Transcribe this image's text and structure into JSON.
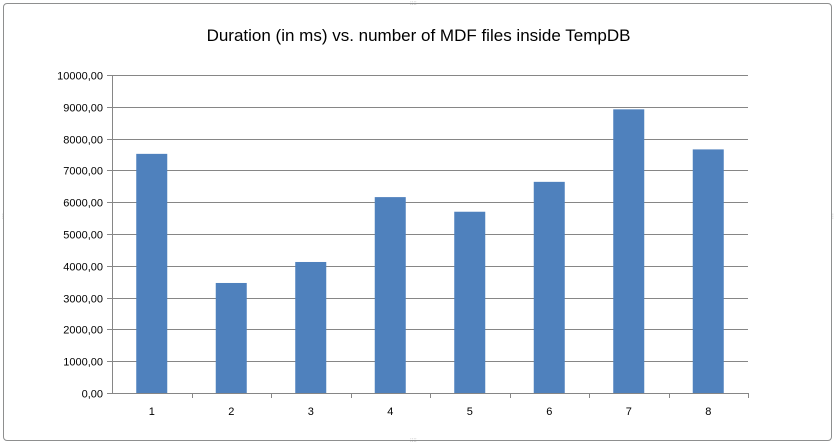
{
  "chart_data": {
    "type": "bar",
    "title": "Duration (in ms) vs. number of MDF files inside TempDB",
    "xlabel": "",
    "ylabel": "",
    "categories": [
      "1",
      "2",
      "3",
      "4",
      "5",
      "6",
      "7",
      "8"
    ],
    "values": [
      7520,
      3460,
      4120,
      6160,
      5700,
      6640,
      8920,
      7660
    ],
    "ylim": [
      0,
      10000
    ],
    "y_ticks": [
      "0,00",
      "1000,00",
      "2000,00",
      "3000,00",
      "4000,00",
      "5000,00",
      "6000,00",
      "7000,00",
      "8000,00",
      "9000,00",
      "10000,00"
    ],
    "grid": true,
    "legend": "none",
    "bar_color": "#4f81bd",
    "gridline_color": "#868686"
  }
}
